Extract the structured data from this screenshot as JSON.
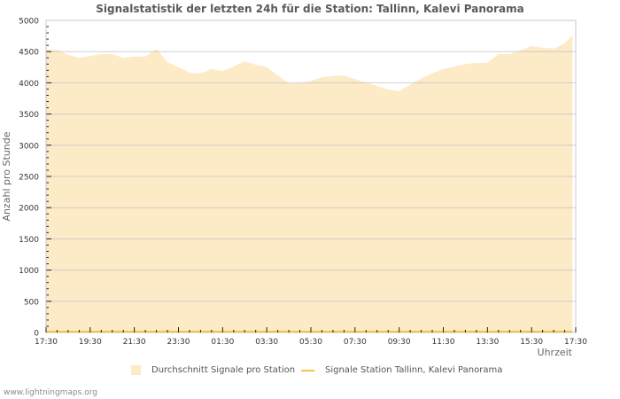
{
  "title": "Signalstatistik der letzten 24h für die Station: Tallinn, Kalevi Panorama",
  "footer": "www.lightningmaps.org",
  "legend": {
    "items": [
      {
        "label": "Durchschnitt Signale pro Station",
        "type": "area",
        "color": "#fdeac7"
      },
      {
        "label": "Signale Station Tallinn, Kalevi Panorama",
        "type": "line",
        "color": "#f3c44c"
      }
    ]
  },
  "colors": {
    "area_fill": "#fdeac7",
    "station_line": "#f3c44c",
    "grid": "#c8c8c8",
    "grid_in_fill": "#d6c4a2",
    "axis_text": "#333333",
    "label_text": "#666666"
  },
  "chart_data": {
    "type": "area",
    "title": "Signalstatistik der letzten 24h für die Station: Tallinn, Kalevi Panorama",
    "xlabel": "Uhrzeit",
    "ylabel": "Anzahl pro Stunde",
    "ylim": [
      0,
      5000
    ],
    "yticks": [
      0,
      500,
      1000,
      1500,
      2000,
      2500,
      3000,
      3500,
      4000,
      4500,
      5000
    ],
    "xticks": [
      "17:30",
      "19:30",
      "21:30",
      "23:30",
      "01:30",
      "03:30",
      "05:30",
      "07:30",
      "09:30",
      "11:30",
      "13:30",
      "15:30",
      "17:30"
    ],
    "grid": true,
    "legend_position": "bottom",
    "x_hours": [
      0,
      0.5,
      1,
      1.5,
      2,
      2.5,
      3,
      3.5,
      4,
      4.5,
      5,
      5.5,
      6,
      6.5,
      7,
      7.5,
      8,
      8.5,
      9,
      9.5,
      10,
      10.5,
      11,
      11.5,
      12,
      12.5,
      13,
      13.5,
      14,
      14.5,
      15,
      15.5,
      16,
      16.5,
      17,
      17.5,
      18,
      18.5,
      19,
      19.5,
      20,
      20.5,
      21,
      21.5,
      22,
      22.5,
      23,
      23.5,
      23.85
    ],
    "series": [
      {
        "name": "Durchschnitt Signale pro Station",
        "values": [
          4530,
          4530,
          4450,
          4400,
          4430,
          4460,
          4460,
          4400,
          4420,
          4420,
          4545,
          4330,
          4250,
          4160,
          4150,
          4220,
          4190,
          4260,
          4345,
          4290,
          4250,
          4120,
          3990,
          3990,
          4030,
          4090,
          4110,
          4120,
          4060,
          4000,
          3950,
          3890,
          3865,
          3970,
          4070,
          4150,
          4220,
          4260,
          4300,
          4320,
          4320,
          4460,
          4460,
          4520,
          4590,
          4560,
          4550,
          4630,
          4760
        ]
      },
      {
        "name": "Signale Station Tallinn, Kalevi Panorama",
        "values": [
          0,
          0,
          0,
          0,
          0,
          0,
          0,
          0,
          0,
          0,
          0,
          0,
          0,
          0,
          0,
          0,
          0,
          0,
          0,
          0,
          0,
          0,
          0,
          0,
          0,
          0,
          0,
          0,
          0,
          0,
          0,
          0,
          0,
          0,
          0,
          0,
          0,
          0,
          0,
          0,
          0,
          0,
          0,
          0,
          0,
          0,
          0,
          0,
          0
        ]
      }
    ]
  }
}
